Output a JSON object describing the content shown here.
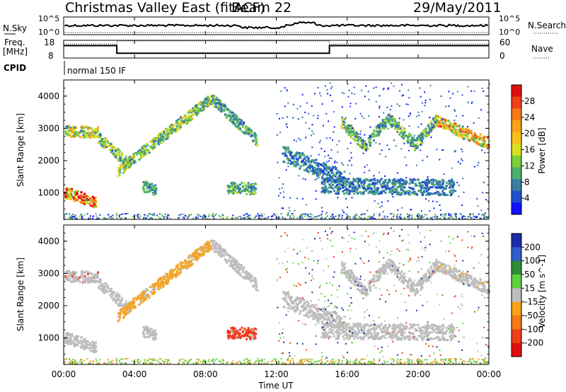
{
  "chart_data": {
    "type": "heatmap",
    "title": "Christmas Valley East (fitACF)",
    "beam_label": "Beam 22",
    "date": "29/May/2011",
    "xlabel": "Time UT",
    "x_ticks": [
      "00:00",
      "04:00",
      "08:00",
      "12:00",
      "16:00",
      "20:00",
      "00:00"
    ],
    "x_range_hours": [
      0,
      24
    ],
    "cpid_label": "CPID",
    "cpid_value": "normal 150 IF",
    "noise_panel": {
      "left_label": "N.Sky",
      "right_label": "N.Search",
      "left_ticks": [
        "10^5",
        "10^0"
      ],
      "right_ticks": [
        "10^5",
        "10^0"
      ]
    },
    "freq_panel": {
      "left_label_line1": "Freq.",
      "left_label_line2": "[MHz]",
      "right_label": "Nave",
      "left_ticks": [
        "18",
        "8"
      ],
      "right_ticks": [
        "60",
        "0"
      ],
      "freq_segments": [
        {
          "start": 0,
          "end": 3,
          "value": 15
        },
        {
          "start": 3,
          "end": 15,
          "value": 10.7
        },
        {
          "start": 15,
          "end": 24,
          "value": 15
        }
      ],
      "nave_segments": [
        {
          "start": 0,
          "end": 3,
          "value": 47
        },
        {
          "start": 3,
          "end": 15,
          "value": 58
        },
        {
          "start": 15,
          "end": 24,
          "value": 47
        }
      ]
    },
    "power_panel": {
      "ylabel": "Slant Range [km]",
      "ylim": [
        180,
        4500
      ],
      "y_ticks": [
        1000,
        2000,
        3000,
        4000
      ],
      "colorbar_label": "Power [dB]",
      "colorbar_ticks": [
        "4",
        "8",
        "12",
        "16",
        "20",
        "24",
        "28"
      ],
      "colorbar_colors": [
        "#1010ff",
        "#1f4fcf",
        "#3a7fa0",
        "#4caf6e",
        "#7ccf3c",
        "#d8e020",
        "#f6c21a",
        "#f7a21a",
        "#f57a18",
        "#f0401c",
        "#e01010"
      ],
      "features": [
        {
          "start": 0.05,
          "end": 1.9,
          "range_start": 2950,
          "range_end": 2900,
          "amp": 0.6,
          "noise": 1.0
        },
        {
          "start": 1.9,
          "end": 3.7,
          "range_start": 2750,
          "range_end": 1900,
          "amp": 0.5,
          "noise": 1.0
        },
        {
          "start": 3.0,
          "end": 8.3,
          "range_start": 1700,
          "range_end": 3950,
          "amp": 0.5,
          "noise": 1.0
        },
        {
          "start": 8.3,
          "end": 10.9,
          "range_start": 3950,
          "range_end": 2650,
          "amp": 0.4,
          "noise": 1.0
        },
        {
          "start": 0.0,
          "end": 1.8,
          "range_start": 1050,
          "range_end": 730,
          "amp": 1.0,
          "noise": 1.0
        },
        {
          "start": 9.2,
          "end": 10.8,
          "range_start": 1200,
          "range_end": 1150,
          "amp": 0.45,
          "noise": 1.0
        },
        {
          "start": 4.4,
          "end": 5.2,
          "range_start": 1250,
          "range_end": 1100,
          "amp": 0.35,
          "noise": 1.0
        },
        {
          "start": 15.6,
          "end": 17.0,
          "range_start": 3250,
          "range_end": 2450,
          "amp": 0.5,
          "noise": 1.0
        },
        {
          "start": 17.0,
          "end": 18.3,
          "range_start": 2500,
          "range_end": 3350,
          "amp": 0.4,
          "noise": 1.0
        },
        {
          "start": 18.3,
          "end": 19.8,
          "range_start": 3350,
          "range_end": 2500,
          "amp": 0.45,
          "noise": 1.0
        },
        {
          "start": 19.8,
          "end": 21.0,
          "range_start": 2500,
          "range_end": 3300,
          "amp": 0.45,
          "noise": 1.0
        },
        {
          "start": 21.0,
          "end": 24.0,
          "range_start": 3250,
          "range_end": 2550,
          "amp": 0.8,
          "noise": 1.0
        },
        {
          "start": 12.3,
          "end": 15.8,
          "range_start": 2250,
          "range_end": 1450,
          "amp": 0.3,
          "noise": 1.4
        },
        {
          "start": 14.5,
          "end": 22.0,
          "range_start": 1250,
          "range_end": 1200,
          "amp": 0.3,
          "noise": 1.4
        }
      ]
    },
    "velocity_panel": {
      "ylabel": "Slant Range [km]",
      "ylim": [
        180,
        4500
      ],
      "y_ticks": [
        1000,
        2000,
        3000,
        4000
      ],
      "colorbar_label": "Velocity [m s^-1]",
      "colorbar_ticks": [
        "200",
        "100",
        "50",
        "15",
        "-15",
        "-50",
        "-100",
        "-200"
      ],
      "colorbar_colors": [
        "#1a2aa8",
        "#2f5fc8",
        "#2f8a38",
        "#5fd03f",
        "#bdbdbd",
        "#f7a21a",
        "#f57a18",
        "#f0401c",
        "#e01010"
      ],
      "feature_colors": [
        "#bdbdbd",
        "#bdbdbd",
        "#f2a52a",
        "#bdbdbd",
        "#bdbdbd",
        "#f03a1a",
        "#bdbdbd",
        "#bdbdbd",
        "#bdbdbd",
        "#bdbdbd",
        "#bdbdbd",
        "#bdbdbd",
        "#bdbdbd",
        "#bdbdbd"
      ]
    }
  }
}
